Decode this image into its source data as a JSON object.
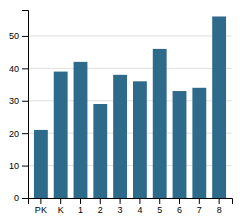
{
  "chart_data": {
    "type": "bar",
    "categories": [
      "PK",
      "K",
      "1",
      "2",
      "3",
      "4",
      "5",
      "6",
      "7",
      "8"
    ],
    "values": [
      21,
      39,
      42,
      29,
      38,
      36,
      46,
      33,
      34,
      56
    ],
    "color": "#2e6b8a",
    "ylim": [
      0,
      58
    ],
    "yticks": [
      0,
      10,
      20,
      30,
      40,
      50
    ],
    "grid": true
  }
}
